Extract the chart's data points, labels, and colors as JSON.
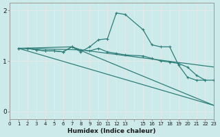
{
  "xlabel": "Humidex (Indice chaleur)",
  "bg_color": "#cceaea",
  "line_color": "#2d7d78",
  "grid_color": "#f0f0f0",
  "xlim": [
    0,
    23
  ],
  "ylim": [
    -0.15,
    2.15
  ],
  "yticks": [
    0,
    1,
    2
  ],
  "xtick_labels": [
    "0",
    "1",
    "2",
    "3",
    "4",
    "5",
    "6",
    "7",
    "8",
    "9",
    "10",
    "11",
    "12",
    "13",
    "",
    "15",
    "16",
    "17",
    "18",
    "19",
    "20",
    "21",
    "22",
    "23"
  ],
  "line1_x": [
    1,
    2,
    3,
    4,
    5,
    6,
    7,
    8,
    9,
    10,
    11,
    12,
    13,
    15,
    16,
    17,
    18,
    19,
    20,
    21,
    22
  ],
  "line1_y": [
    1.25,
    1.25,
    1.22,
    1.2,
    1.2,
    1.18,
    1.28,
    1.18,
    1.28,
    1.42,
    1.44,
    1.95,
    1.92,
    1.62,
    1.32,
    1.28,
    1.28,
    0.92,
    0.68,
    0.62,
    0.62
  ],
  "line2_x": [
    1,
    2,
    3,
    4,
    5,
    6,
    7,
    8,
    9,
    10,
    11,
    12,
    13,
    15,
    16,
    17,
    18,
    19,
    20,
    21,
    22,
    23
  ],
  "line2_y": [
    1.25,
    1.25,
    1.22,
    1.2,
    1.2,
    1.18,
    1.28,
    1.22,
    1.2,
    1.25,
    1.18,
    1.15,
    1.12,
    1.1,
    1.05,
    1.0,
    0.98,
    0.95,
    0.88,
    0.72,
    0.62,
    0.62
  ],
  "line3_x": [
    1,
    7,
    23
  ],
  "line3_y": [
    1.25,
    1.28,
    0.12
  ],
  "line4_x": [
    1,
    23
  ],
  "line4_y": [
    1.25,
    0.12
  ],
  "line5_x": [
    1,
    8,
    23
  ],
  "line5_y": [
    1.25,
    1.22,
    0.88
  ]
}
